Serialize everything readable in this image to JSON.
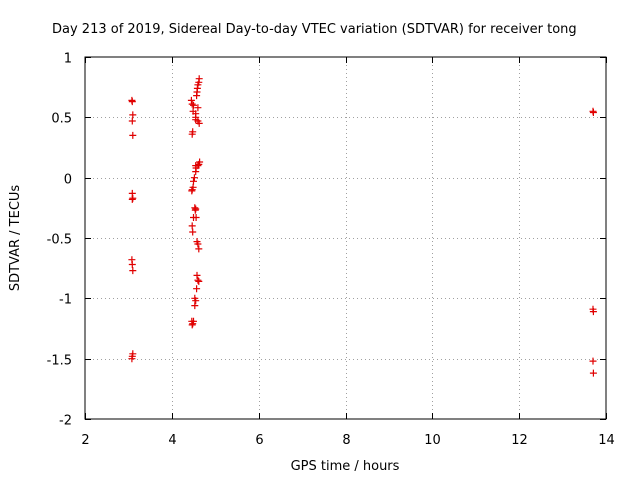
{
  "chart_data": {
    "type": "scatter",
    "title": "Day 213 of 2019, Sidereal Day-to-day VTEC variation (SDTVAR) for receiver tong",
    "xlabel": "GPS time / hours",
    "ylabel": "SDTVAR / TECUs",
    "xlim": [
      2,
      14
    ],
    "ylim": [
      -2,
      1
    ],
    "xticks": [
      2,
      4,
      6,
      8,
      10,
      12,
      14
    ],
    "yticks": [
      -2,
      -1.5,
      -1,
      -0.5,
      0,
      0.5,
      1
    ],
    "xtick_labels": [
      "2",
      "4",
      "6",
      "8",
      "10",
      "12",
      "14"
    ],
    "ytick_labels": [
      "-2",
      "-1.5",
      "-1",
      "-0.5",
      "0",
      "0.5",
      "1"
    ],
    "grid": true,
    "grid_style": "dotted",
    "marker": "+",
    "color": "#e00000",
    "series": [
      {
        "name": "tong",
        "points": [
          [
            3.08,
            0.64
          ],
          [
            3.09,
            0.63
          ],
          [
            3.1,
            0.52
          ],
          [
            3.09,
            0.47
          ],
          [
            3.1,
            0.35
          ],
          [
            3.09,
            -0.13
          ],
          [
            3.1,
            -0.17
          ],
          [
            3.09,
            -0.18
          ],
          [
            3.08,
            -0.68
          ],
          [
            3.09,
            -0.72
          ],
          [
            3.1,
            -0.77
          ],
          [
            3.1,
            -1.46
          ],
          [
            3.09,
            -1.48
          ],
          [
            3.08,
            -1.5
          ],
          [
            4.45,
            0.64
          ],
          [
            4.47,
            0.61
          ],
          [
            4.5,
            0.6
          ],
          [
            4.49,
            0.55
          ],
          [
            4.48,
            0.38
          ],
          [
            4.47,
            0.36
          ],
          [
            4.5,
            -0.03
          ],
          [
            4.49,
            -0.08
          ],
          [
            4.47,
            -0.1
          ],
          [
            4.46,
            -0.11
          ],
          [
            4.47,
            -0.4
          ],
          [
            4.48,
            -0.45
          ],
          [
            4.5,
            -1.19
          ],
          [
            4.48,
            -1.21
          ],
          [
            4.47,
            -1.22
          ],
          [
            4.46,
            -1.19
          ],
          [
            4.52,
            0.0
          ],
          [
            4.55,
            0.05
          ],
          [
            4.56,
            0.08
          ],
          [
            4.55,
            0.1
          ],
          [
            4.53,
            -0.25
          ],
          [
            4.54,
            -0.27
          ],
          [
            4.55,
            -0.26
          ],
          [
            4.56,
            -0.33
          ],
          [
            4.5,
            -0.33
          ],
          [
            4.55,
            0.53
          ],
          [
            4.55,
            0.5
          ],
          [
            4.55,
            0.48
          ],
          [
            4.53,
            -1.0
          ],
          [
            4.55,
            -1.02
          ],
          [
            4.53,
            -1.06
          ],
          [
            4.57,
            0.68
          ],
          [
            4.58,
            0.71
          ],
          [
            4.59,
            0.74
          ],
          [
            4.6,
            0.77
          ],
          [
            4.62,
            0.79
          ],
          [
            4.63,
            0.82
          ],
          [
            4.6,
            0.58
          ],
          [
            4.6,
            0.47
          ],
          [
            4.63,
            0.45
          ],
          [
            4.6,
            0.1
          ],
          [
            4.62,
            0.11
          ],
          [
            4.64,
            0.13
          ],
          [
            4.58,
            -0.53
          ],
          [
            4.6,
            -0.55
          ],
          [
            4.62,
            -0.59
          ],
          [
            4.58,
            -0.81
          ],
          [
            4.6,
            -0.85
          ],
          [
            4.62,
            -0.86
          ],
          [
            4.57,
            -0.92
          ],
          [
            13.7,
            0.55
          ],
          [
            13.71,
            0.54
          ],
          [
            13.7,
            -1.09
          ],
          [
            13.71,
            -1.11
          ],
          [
            13.7,
            -1.52
          ],
          [
            13.71,
            -1.62
          ]
        ]
      }
    ]
  }
}
